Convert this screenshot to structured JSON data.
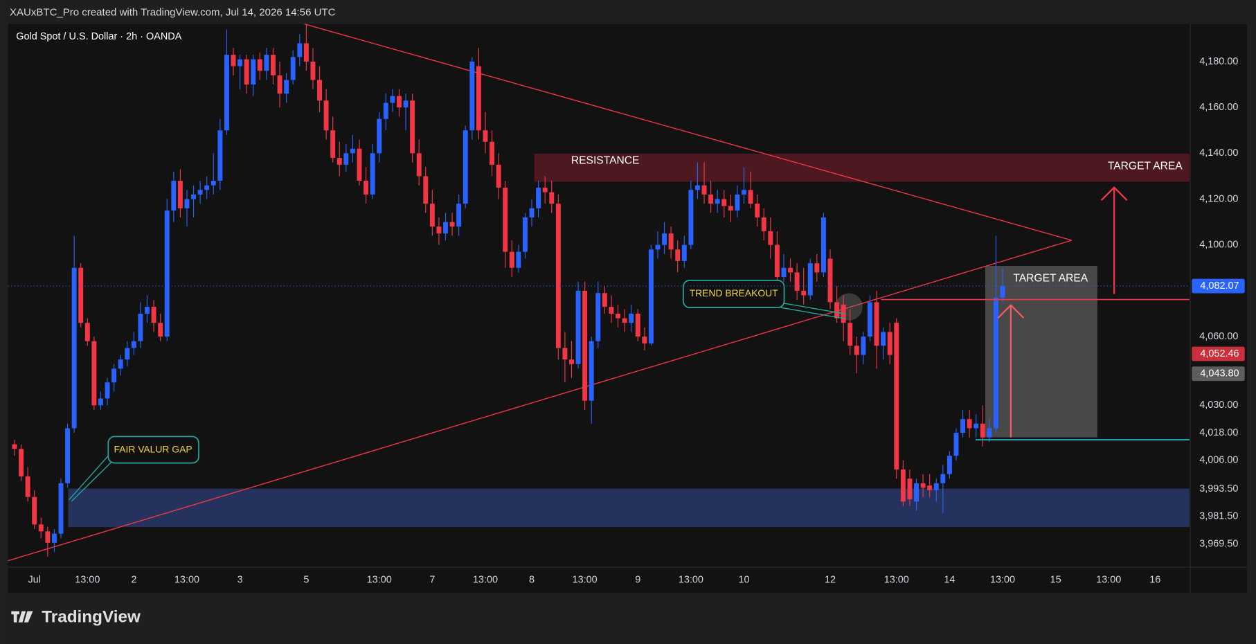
{
  "attribution": "XAUxBTC_Pro created with TradingView.com, Jul 14, 2026 14:56 UTC",
  "logo": "TradingView",
  "chart_data": {
    "type": "candlestick",
    "title": "Gold Spot / U.S. Dollar · 2h · OANDA",
    "colors": {
      "up": "#2962ff",
      "down": "#f23645"
    },
    "ylim": [
      3959.4,
      4196.4
    ],
    "yticks": [
      {
        "value": 4180,
        "label": "4,180.00"
      },
      {
        "value": 4160,
        "label": "4,160.00"
      },
      {
        "value": 4140,
        "label": "4,140.00"
      },
      {
        "value": 4120,
        "label": "4,120.00"
      },
      {
        "value": 4100,
        "label": "4,100.00"
      },
      {
        "value": 4060,
        "label": "4,060.00"
      },
      {
        "value": 4030,
        "label": "4,030.00"
      },
      {
        "value": 4018,
        "label": "4,018.00"
      },
      {
        "value": 4006,
        "label": "4,006.00"
      },
      {
        "value": 3993.5,
        "label": "3,993.50"
      },
      {
        "value": 3981.5,
        "label": "3,981.50"
      },
      {
        "value": 3969.5,
        "label": "3,969.50"
      }
    ],
    "grid": false,
    "price_labels": [
      {
        "value": 4082.07,
        "label": "4,082.07",
        "color": "#2962ff"
      },
      {
        "value": 4052.46,
        "label": "4,052.46",
        "color": "#cc2f3c"
      },
      {
        "value": 4043.8,
        "label": "4,043.80",
        "color": "#5d5d5d"
      }
    ],
    "annotations": {
      "resistance": "RESISTANCE",
      "target_top": "TARGET AREA",
      "target_box": "TARGET AREA",
      "fvg": "FAIR VALUR GAP",
      "breakout": "TREND BREAKOUT"
    },
    "categories": [
      null,
      null,
      null,
      "Jul",
      null,
      null,
      null,
      null,
      null,
      null,
      null,
      "13:00",
      null,
      null,
      null,
      null,
      null,
      null,
      "2",
      null,
      null,
      null,
      null,
      null,
      null,
      null,
      "13:00",
      null,
      null,
      null,
      null,
      null,
      null,
      null,
      "3",
      null,
      null,
      null,
      null,
      null,
      null,
      null,
      null,
      null,
      "5",
      null,
      null,
      null,
      null,
      null,
      null,
      null,
      null,
      null,
      null,
      "13:00",
      null,
      null,
      null,
      null,
      null,
      null,
      null,
      "7",
      null,
      null,
      null,
      null,
      null,
      null,
      null,
      "13:00",
      null,
      null,
      null,
      null,
      null,
      null,
      "8",
      null,
      null,
      null,
      null,
      null,
      null,
      null,
      "13:00",
      null,
      null,
      null,
      null,
      null,
      null,
      null,
      "9",
      null,
      null,
      null,
      null,
      null,
      null,
      null,
      "13:00",
      null,
      null,
      null,
      null,
      null,
      null,
      null,
      "10",
      null,
      null,
      null,
      null,
      null,
      null,
      null,
      null,
      null,
      null,
      null,
      null,
      "12",
      null,
      null,
      null,
      null,
      null,
      null,
      null,
      null,
      null,
      "13:00",
      null,
      null,
      null,
      null,
      null,
      null,
      null,
      "14",
      null,
      null,
      null,
      null,
      null,
      null,
      null,
      "13:00",
      null,
      null,
      null,
      null,
      null,
      null,
      null,
      "15",
      null,
      null,
      null,
      null,
      null,
      null,
      null,
      "13:00",
      null,
      null,
      null,
      null,
      null,
      null,
      "16",
      null,
      null,
      null,
      null,
      null
    ],
    "ohlc": [
      [
        4013,
        4015,
        4008,
        4011
      ],
      [
        4011,
        4013,
        3997,
        3999
      ],
      [
        3999,
        4003,
        3988,
        3990
      ],
      [
        3990,
        3993,
        3976,
        3978
      ],
      [
        3978,
        3981,
        3972,
        3975
      ],
      [
        3975,
        3977,
        3964,
        3970
      ],
      [
        3970,
        3976,
        3966,
        3974
      ],
      [
        3974,
        3998,
        3972,
        3996
      ],
      [
        3996,
        4022,
        3994,
        4020
      ],
      [
        4020,
        4104,
        4018,
        4090
      ],
      [
        4090,
        4092,
        4064,
        4066
      ],
      [
        4066,
        4068,
        4056,
        4058
      ],
      [
        4058,
        4060,
        4028,
        4030
      ],
      [
        4030,
        4036,
        4028,
        4033
      ],
      [
        4033,
        4042,
        4030,
        4040
      ],
      [
        4040,
        4048,
        4036,
        4046
      ],
      [
        4046,
        4052,
        4043,
        4050
      ],
      [
        4050,
        4058,
        4047,
        4055
      ],
      [
        4055,
        4062,
        4052,
        4058
      ],
      [
        4058,
        4075,
        4055,
        4070
      ],
      [
        4070,
        4078,
        4066,
        4073
      ],
      [
        4073,
        4076,
        4062,
        4066
      ],
      [
        4066,
        4070,
        4058,
        4060
      ],
      [
        4060,
        4120,
        4058,
        4115
      ],
      [
        4115,
        4132,
        4110,
        4128
      ],
      [
        4128,
        4133,
        4112,
        4116
      ],
      [
        4116,
        4124,
        4108,
        4120
      ],
      [
        4120,
        4126,
        4112,
        4122
      ],
      [
        4122,
        4128,
        4118,
        4124
      ],
      [
        4124,
        4130,
        4120,
        4126
      ],
      [
        4126,
        4140,
        4122,
        4128
      ],
      [
        4128,
        4155,
        4124,
        4150
      ],
      [
        4150,
        4194,
        4148,
        4183
      ],
      [
        4183,
        4186,
        4174,
        4178
      ],
      [
        4178,
        4183,
        4168,
        4181
      ],
      [
        4181,
        4183,
        4166,
        4170
      ],
      [
        4170,
        4183,
        4165,
        4181
      ],
      [
        4181,
        4184,
        4172,
        4176
      ],
      [
        4176,
        4186,
        4172,
        4183
      ],
      [
        4183,
        4186,
        4170,
        4174
      ],
      [
        4174,
        4180,
        4160,
        4166
      ],
      [
        4166,
        4175,
        4162,
        4172
      ],
      [
        4172,
        4185,
        4170,
        4182
      ],
      [
        4182,
        4192,
        4178,
        4188
      ],
      [
        4188,
        4196,
        4176,
        4180
      ],
      [
        4180,
        4186,
        4168,
        4172
      ],
      [
        4172,
        4178,
        4158,
        4163
      ],
      [
        4163,
        4168,
        4146,
        4150
      ],
      [
        4150,
        4156,
        4136,
        4138
      ],
      [
        4138,
        4145,
        4130,
        4135
      ],
      [
        4135,
        4144,
        4132,
        4140
      ],
      [
        4140,
        4148,
        4136,
        4142
      ],
      [
        4142,
        4146,
        4126,
        4128
      ],
      [
        4128,
        4134,
        4118,
        4122
      ],
      [
        4122,
        4144,
        4120,
        4140
      ],
      [
        4140,
        4158,
        4136,
        4155
      ],
      [
        4155,
        4166,
        4150,
        4162
      ],
      [
        4162,
        4168,
        4158,
        4165
      ],
      [
        4165,
        4168,
        4156,
        4160
      ],
      [
        4160,
        4166,
        4150,
        4163
      ],
      [
        4163,
        4166,
        4136,
        4140
      ],
      [
        4140,
        4146,
        4126,
        4130
      ],
      [
        4130,
        4134,
        4114,
        4118
      ],
      [
        4118,
        4124,
        4104,
        4108
      ],
      [
        4108,
        4112,
        4100,
        4105
      ],
      [
        4105,
        4114,
        4102,
        4110
      ],
      [
        4110,
        4114,
        4104,
        4108
      ],
      [
        4108,
        4122,
        4104,
        4118
      ],
      [
        4118,
        4152,
        4116,
        4150
      ],
      [
        4150,
        4182,
        4146,
        4180
      ],
      [
        4178,
        4186,
        4146,
        4150
      ],
      [
        4150,
        4158,
        4140,
        4145
      ],
      [
        4145,
        4150,
        4130,
        4135
      ],
      [
        4135,
        4140,
        4120,
        4125
      ],
      [
        4125,
        4128,
        4090,
        4097
      ],
      [
        4097,
        4102,
        4086,
        4090
      ],
      [
        4090,
        4100,
        4088,
        4097
      ],
      [
        4097,
        4114,
        4094,
        4112
      ],
      [
        4112,
        4120,
        4108,
        4116
      ],
      [
        4116,
        4128,
        4112,
        4125
      ],
      [
        4125,
        4130,
        4118,
        4123
      ],
      [
        4123,
        4128,
        4114,
        4118
      ],
      [
        4118,
        4122,
        4050,
        4055
      ],
      [
        4055,
        4062,
        4040,
        4050
      ],
      [
        4050,
        4058,
        4042,
        4048
      ],
      [
        4048,
        4084,
        4046,
        4080
      ],
      [
        4080,
        4084,
        4028,
        4032
      ],
      [
        4032,
        4060,
        4022,
        4058
      ],
      [
        4058,
        4084,
        4055,
        4079
      ],
      [
        4079,
        4082,
        4070,
        4073
      ],
      [
        4073,
        4078,
        4066,
        4070
      ],
      [
        4070,
        4074,
        4064,
        4068
      ],
      [
        4068,
        4072,
        4062,
        4066
      ],
      [
        4066,
        4074,
        4062,
        4070
      ],
      [
        4070,
        4072,
        4058,
        4060
      ],
      [
        4060,
        4064,
        4054,
        4057
      ],
      [
        4057,
        4100,
        4056,
        4098
      ],
      [
        4098,
        4106,
        4094,
        4100
      ],
      [
        4100,
        4110,
        4096,
        4105
      ],
      [
        4105,
        4108,
        4094,
        4098
      ],
      [
        4098,
        4102,
        4088,
        4093
      ],
      [
        4093,
        4104,
        4090,
        4100
      ],
      [
        4100,
        4128,
        4098,
        4124
      ],
      [
        4124,
        4136,
        4120,
        4126
      ],
      [
        4126,
        4136,
        4118,
        4122
      ],
      [
        4122,
        4128,
        4114,
        4118
      ],
      [
        4118,
        4124,
        4114,
        4120
      ],
      [
        4120,
        4124,
        4112,
        4117
      ],
      [
        4117,
        4122,
        4110,
        4115
      ],
      [
        4115,
        4126,
        4112,
        4122
      ],
      [
        4122,
        4134,
        4118,
        4124
      ],
      [
        4124,
        4132,
        4116,
        4118
      ],
      [
        4118,
        4122,
        4108,
        4112
      ],
      [
        4112,
        4116,
        4102,
        4106
      ],
      [
        4106,
        4112,
        4094,
        4100
      ],
      [
        4100,
        4106,
        4082,
        4086
      ],
      [
        4086,
        4096,
        4084,
        4090
      ],
      [
        4090,
        4094,
        4084,
        4088
      ],
      [
        4088,
        4092,
        4076,
        4080
      ],
      [
        4080,
        4090,
        4074,
        4078
      ],
      [
        4078,
        4094,
        4076,
        4092
      ],
      [
        4092,
        4096,
        4084,
        4088
      ],
      [
        4088,
        4114,
        4086,
        4112
      ],
      [
        4094,
        4098,
        4072,
        4075
      ],
      [
        4075,
        4082,
        4066,
        4068
      ],
      [
        4074,
        4078,
        4058,
        4066
      ],
      [
        4066,
        4072,
        4052,
        4056
      ],
      [
        4056,
        4060,
        4044,
        4052
      ],
      [
        4052,
        4062,
        4048,
        4060
      ],
      [
        4060,
        4078,
        4058,
        4075
      ],
      [
        4075,
        4080,
        4046,
        4056
      ],
      [
        4056,
        4064,
        4050,
        4062
      ],
      [
        4062,
        4066,
        4048,
        4052
      ],
      [
        4066,
        4068,
        3998,
        4002
      ],
      [
        4002,
        4006,
        3986,
        3988
      ],
      [
        3998,
        4002,
        3986,
        3989
      ],
      [
        3988,
        3998,
        3984,
        3996
      ],
      [
        3996,
        4000,
        3990,
        3994
      ],
      [
        3995,
        4000,
        3990,
        3993
      ],
      [
        3993,
        3998,
        3988,
        3996
      ],
      [
        3996,
        4004,
        3983,
        4000
      ],
      [
        4000,
        4010,
        3998,
        4008
      ],
      [
        4008,
        4020,
        4006,
        4018
      ],
      [
        4018,
        4028,
        4016,
        4024
      ],
      [
        4024,
        4028,
        4016,
        4020
      ],
      [
        4020,
        4026,
        4016,
        4022
      ],
      [
        4022,
        4030,
        4012,
        4016
      ],
      [
        4016,
        4024,
        4014,
        4020
      ],
      [
        4020,
        4104,
        4018,
        4077
      ],
      [
        4077,
        4090,
        4075,
        4082
      ],
      null,
      null,
      null,
      null,
      null,
      null,
      null,
      null,
      null,
      null,
      null,
      null,
      null,
      null,
      null,
      null,
      null,
      null,
      null,
      null,
      null,
      null,
      null,
      null,
      null,
      null,
      null,
      null
    ]
  }
}
